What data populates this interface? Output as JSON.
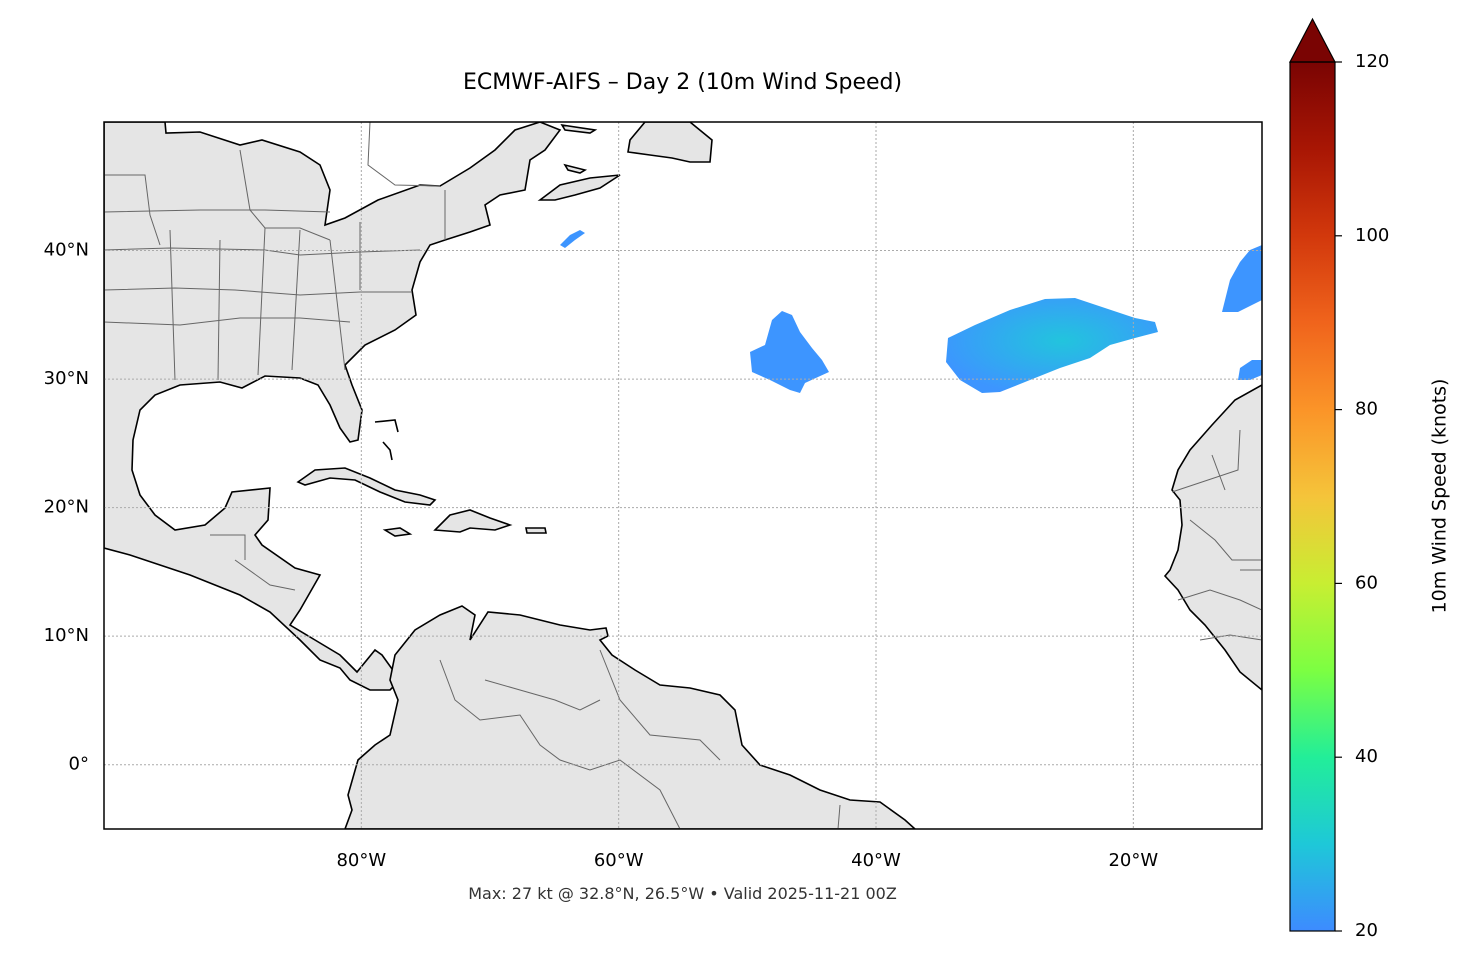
{
  "title": "ECMWF-AIFS – Day 2 (10m Wind Speed)",
  "footer": "Max: 27 kt @ 32.8°N, 26.5°W • Valid 2025-11-21 00Z",
  "map": {
    "lon_range": [
      -100,
      -10
    ],
    "lat_range": [
      -5,
      50
    ],
    "gridlines": true,
    "land_color": "#e5e5e5",
    "coastline_color": "#000000",
    "border_color": "#666666",
    "lat_ticks": [
      {
        "value": 40,
        "label": "40°N"
      },
      {
        "value": 30,
        "label": "30°N"
      },
      {
        "value": 20,
        "label": "20°N"
      },
      {
        "value": 10,
        "label": "10°N"
      },
      {
        "value": 0,
        "label": "0°"
      }
    ],
    "lon_ticks": [
      {
        "value": -80,
        "label": "80°W"
      },
      {
        "value": -60,
        "label": "60°W"
      },
      {
        "value": -40,
        "label": "40°W"
      },
      {
        "value": -20,
        "label": "20°W"
      }
    ]
  },
  "wind_regions": [
    {
      "name": "blob-west",
      "color": "#3d95ff"
    },
    {
      "name": "blob-central",
      "color": "#2fb4f0",
      "core_color": "#22c4dd"
    },
    {
      "name": "blob-east",
      "color": "#3d95ff"
    },
    {
      "name": "blob-small-east",
      "color": "#3d95ff"
    },
    {
      "name": "blob-north-small",
      "color": "#3d95ff"
    }
  ],
  "max_marker": {
    "lat": 32.8,
    "lon": -26.5,
    "value": 27
  },
  "colorbar": {
    "label": "10m Wind Speed (knots)",
    "min": 20,
    "max": 120,
    "extend": "max",
    "ticks": [
      {
        "value": 120,
        "label": "120"
      },
      {
        "value": 100,
        "label": "100"
      },
      {
        "value": 80,
        "label": "80"
      },
      {
        "value": 60,
        "label": "60"
      },
      {
        "value": 40,
        "label": "40"
      },
      {
        "value": 20,
        "label": "20"
      }
    ],
    "stops": [
      {
        "value": 20,
        "color": "#3d8bff"
      },
      {
        "value": 30,
        "color": "#1ec8d8"
      },
      {
        "value": 40,
        "color": "#22ee99"
      },
      {
        "value": 50,
        "color": "#7cff42"
      },
      {
        "value": 60,
        "color": "#c8ee32"
      },
      {
        "value": 70,
        "color": "#f5c43a"
      },
      {
        "value": 80,
        "color": "#fb9428"
      },
      {
        "value": 90,
        "color": "#f0641c"
      },
      {
        "value": 100,
        "color": "#d2380c"
      },
      {
        "value": 110,
        "color": "#a81604"
      },
      {
        "value": 120,
        "color": "#7a0403"
      }
    ]
  }
}
